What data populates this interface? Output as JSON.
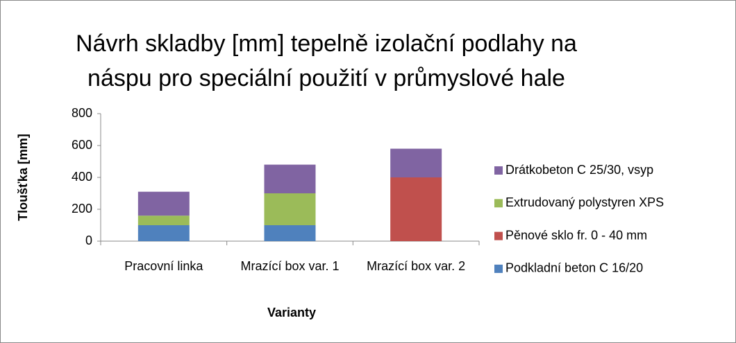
{
  "chart_data": {
    "type": "stacked_bar",
    "title": "Návrh skladby [mm] tepelně izolační podlahy na náspu pro speciální použití v průmyslové hale",
    "x_label": "Varianty",
    "y_label": "Tloušťka [mm]",
    "categories": [
      "Pracovní linka",
      "Mrazící box var. 1",
      "Mrazící box var. 2"
    ],
    "series": [
      {
        "name": "Podkladní beton C 16/20",
        "color": "#4f81bd",
        "values": [
          100,
          100,
          0
        ]
      },
      {
        "name": "Pěnové sklo fr. 0 - 40 mm",
        "color": "#c0504d",
        "values": [
          0,
          0,
          400
        ]
      },
      {
        "name": "Extrudovaný polystyren XPS",
        "color": "#9bbb59",
        "values": [
          60,
          200,
          0
        ]
      },
      {
        "name": "Drátkobeton C 25/30, vsyp",
        "color": "#8064a2",
        "values": [
          150,
          180,
          180
        ]
      }
    ],
    "ylim": [
      0,
      800
    ],
    "yticks": [
      0,
      200,
      400,
      600,
      800
    ],
    "legend": "right"
  }
}
